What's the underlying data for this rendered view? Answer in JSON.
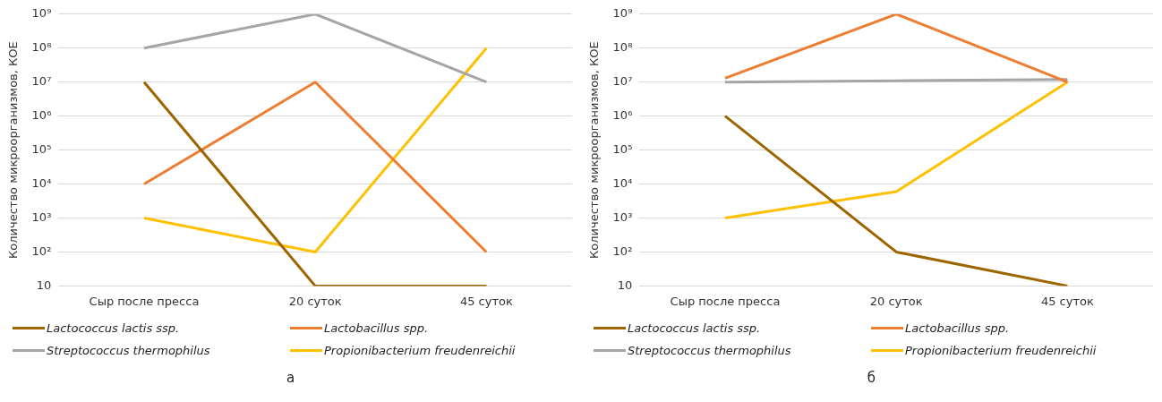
{
  "chart_data": [
    {
      "type": "line",
      "ylabel": "Количество микроорганизмов, КОЕ",
      "categories": [
        "Сыр после пресса",
        "20 суток",
        "45 суток"
      ],
      "log": "y",
      "ylim": [
        10,
        1000000000
      ],
      "yticks": [
        {
          "value": 10,
          "label": "10"
        },
        {
          "value": 100,
          "label": "10²"
        },
        {
          "value": 1000,
          "label": "10³"
        },
        {
          "value": 10000,
          "label": "10⁴"
        },
        {
          "value": 100000,
          "label": "10⁵"
        },
        {
          "value": 1000000,
          "label": "10⁶"
        },
        {
          "value": 10000000,
          "label": "10⁷"
        },
        {
          "value": 100000000,
          "label": "10⁸"
        },
        {
          "value": 1000000000,
          "label": "10⁹"
        }
      ],
      "grid": "y",
      "legend": "bottom",
      "marker": "none",
      "annotations": [
        "а"
      ],
      "series": [
        {
          "name": "Lactococcus lactis ssp.",
          "color": "#9c6500",
          "values": [
            10000000,
            10,
            10
          ]
        },
        {
          "name": "Lactobacillus spp.",
          "color": "#ed7d31",
          "values": [
            10000,
            10000000,
            100
          ]
        },
        {
          "name": "Streptococcus thermophilus",
          "color": "#a5a5a5",
          "values": [
            100000000,
            1000000000,
            10000000
          ]
        },
        {
          "name": "Propionibacterium freudenreichii",
          "color": "#ffc000",
          "values": [
            1000,
            100,
            100000000
          ]
        }
      ]
    },
    {
      "type": "line",
      "ylabel": "Количество микроорганизмов, КОЕ",
      "categories": [
        "Сыр после пресса",
        "20 суток",
        "45 суток"
      ],
      "log": "y",
      "ylim": [
        10,
        1000000000
      ],
      "yticks": [
        {
          "value": 10,
          "label": "10"
        },
        {
          "value": 100,
          "label": "10²"
        },
        {
          "value": 1000,
          "label": "10³"
        },
        {
          "value": 10000,
          "label": "10⁴"
        },
        {
          "value": 100000,
          "label": "10⁵"
        },
        {
          "value": 1000000,
          "label": "10⁶"
        },
        {
          "value": 10000000,
          "label": "10⁷"
        },
        {
          "value": 100000000,
          "label": "10⁸"
        },
        {
          "value": 1000000000,
          "label": "10⁹"
        }
      ],
      "grid": "y",
      "legend": "bottom",
      "marker": "none",
      "annotations": [
        "б"
      ],
      "series": [
        {
          "name": "Lactococcus lactis ssp.",
          "color": "#9c6500",
          "values": [
            1000000,
            100,
            10
          ]
        },
        {
          "name": "Lactobacillus spp.",
          "color": "#ed7d31",
          "values": [
            13000000,
            1000000000,
            10000000
          ]
        },
        {
          "name": "Streptococcus thermophilus",
          "color": "#a5a5a5",
          "values": [
            10000000,
            11000000,
            12000000
          ]
        },
        {
          "name": "Propionibacterium freudenreichii",
          "color": "#ffc000",
          "values": [
            1000,
            6000,
            10000000
          ]
        }
      ]
    }
  ]
}
